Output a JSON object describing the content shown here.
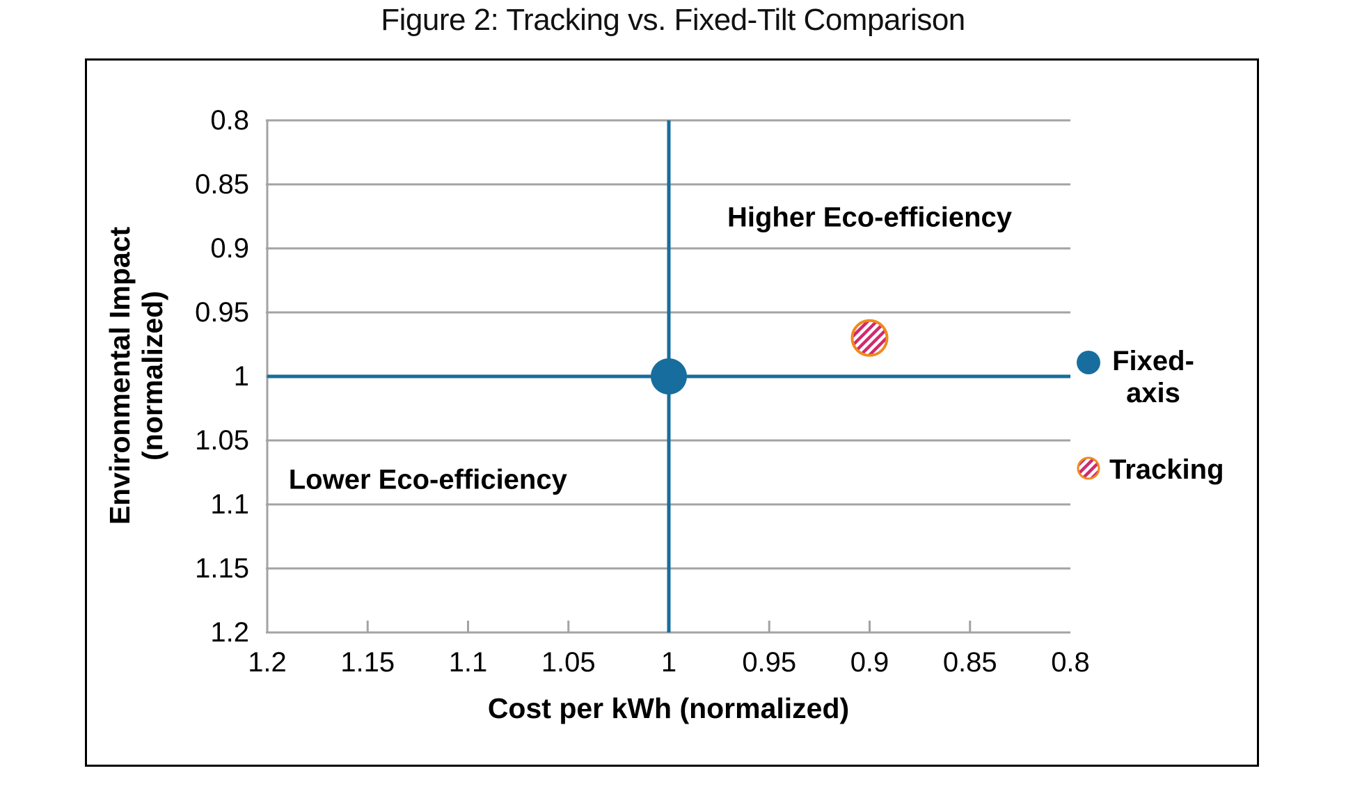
{
  "figure": {
    "title": "Figure 2: Tracking vs. Fixed-Tilt Comparison"
  },
  "colors": {
    "accent_blue": "#176e9e",
    "tracking_ring_orange": "#ef8a1c",
    "tracking_hatch_crimson": "#d02a6e",
    "gridline_gray": "#a3a3a3",
    "frame_border": "#000000",
    "text": "#000000"
  },
  "chart_data": {
    "type": "scatter",
    "title": "Figure 2: Tracking vs. Fixed-Tilt Comparison",
    "xlabel": "Cost per kWh (normalized)",
    "ylabel": "Environmental Impact (normalized)",
    "ylabel_lines": [
      "Environmental Impact",
      "(normalized)"
    ],
    "x_axis": {
      "ticks": [
        "1.2",
        "1.15",
        "1.1",
        "1.05",
        "1",
        "0.95",
        "0.9",
        "0.85",
        "0.8"
      ],
      "tick_values": [
        1.2,
        1.15,
        1.1,
        1.05,
        1,
        0.95,
        0.9,
        0.85,
        0.8
      ],
      "range": [
        1.2,
        0.8
      ],
      "reversed": true
    },
    "y_axis": {
      "ticks": [
        "0.8",
        "0.85",
        "0.9",
        "0.95",
        "1",
        "1.05",
        "1.1",
        "1.15",
        "1.2"
      ],
      "tick_values": [
        0.8,
        0.85,
        0.9,
        0.95,
        1,
        1.05,
        1.1,
        1.15,
        1.2
      ],
      "range": [
        0.8,
        1.2
      ],
      "reversed": true
    },
    "grid": "horizontal-only",
    "series": [
      {
        "name": "Fixed-axis",
        "marker": "filled-circle",
        "color": "#176e9e",
        "points": [
          {
            "x": 1,
            "y": 1
          }
        ]
      },
      {
        "name": "Tracking",
        "marker": "hatched-circle",
        "ring_color": "#ef8a1c",
        "hatch_color": "#d02a6e",
        "points": [
          {
            "x": 0.9,
            "y": 0.97
          }
        ]
      }
    ],
    "reference_lines": [
      {
        "axis": "x",
        "value": 1,
        "color": "#176e9e"
      },
      {
        "axis": "y",
        "value": 1,
        "color": "#176e9e"
      }
    ],
    "annotations": {
      "higher": {
        "text": "Higher Eco-efficiency",
        "x": 0.9,
        "y": 0.876,
        "region": "upper-right"
      },
      "lower": {
        "text": "Lower Eco-efficiency",
        "x": 1.12,
        "y": 1.081,
        "region": "lower-left"
      }
    },
    "legend": {
      "position": "right",
      "items": [
        {
          "label": "Fixed-axis",
          "lines": [
            "Fixed-",
            "axis"
          ],
          "marker": "filled-circle",
          "color": "#176e9e"
        },
        {
          "label": "Tracking",
          "lines": [
            "Tracking"
          ],
          "marker": "hatched-circle",
          "ring_color": "#ef8a1c",
          "hatch_color": "#d02a6e"
        }
      ]
    }
  }
}
